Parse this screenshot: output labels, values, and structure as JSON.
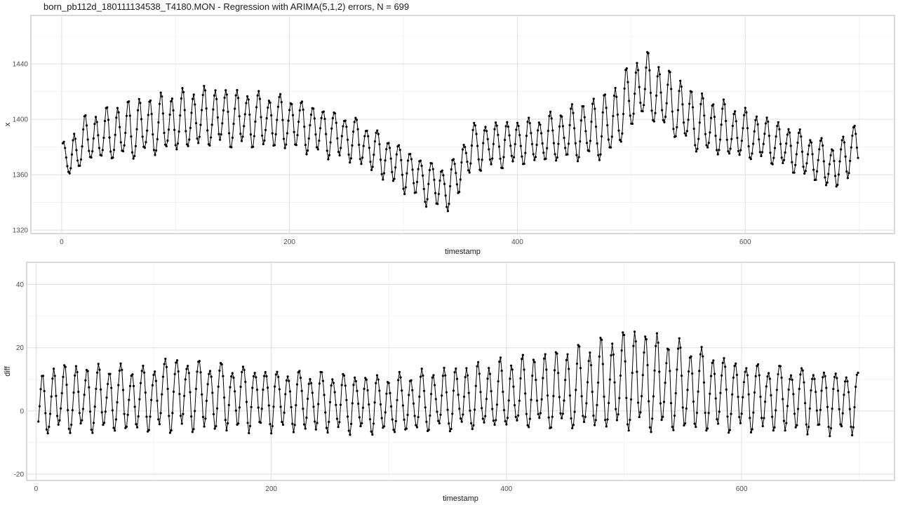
{
  "title": "born_pb112d_180111134538_T4180.MON - Regression with ARIMA(5,1,2) errors, N = 699",
  "colors": {
    "line": "#000000",
    "grid": "#dedede",
    "panel_border": "#b3b3b3",
    "background": "#ffffff"
  },
  "chart_data": [
    {
      "type": "line",
      "name": "top",
      "xlabel": "timestamp",
      "ylabel": "x",
      "xlim": [
        -27,
        731
      ],
      "ylim": [
        1317.5,
        1475
      ],
      "xticks": [
        0,
        200,
        400,
        600
      ],
      "yticks": [
        1320,
        1360,
        1400,
        1440
      ],
      "grid": true,
      "markers": true,
      "series": {
        "x_start": 1,
        "x_end": 699,
        "points": 699,
        "period": 9.5,
        "envelope": [
          [
            1,
            1372,
            20
          ],
          [
            8,
            1372,
            30
          ],
          [
            20,
            1385,
            30
          ],
          [
            60,
            1392,
            40
          ],
          [
            130,
            1402,
            40
          ],
          [
            200,
            1398,
            35
          ],
          [
            260,
            1385,
            30
          ],
          [
            320,
            1355,
            30
          ],
          [
            340,
            1350,
            30
          ],
          [
            360,
            1380,
            32
          ],
          [
            420,
            1385,
            30
          ],
          [
            480,
            1395,
            45
          ],
          [
            510,
            1425,
            45
          ],
          [
            560,
            1396,
            40
          ],
          [
            620,
            1385,
            30
          ],
          [
            680,
            1365,
            30
          ],
          [
            699,
            1385,
            32
          ]
        ]
      }
    },
    {
      "type": "line",
      "name": "bottom",
      "xlabel": "timestamp",
      "ylabel": "diff",
      "xlim": [
        -8,
        730
      ],
      "ylim": [
        -22,
        47
      ],
      "xticks": [
        0,
        200,
        400,
        600
      ],
      "yticks": [
        -20,
        0,
        20,
        40
      ],
      "grid": true,
      "markers": true,
      "series": {
        "x_start": 2,
        "x_end": 699,
        "points": 698,
        "period": 9.5,
        "envelope": [
          [
            2,
            0,
            17
          ],
          [
            15,
            4,
            20
          ],
          [
            100,
            4,
            19
          ],
          [
            110,
            6,
            22
          ],
          [
            200,
            4,
            18
          ],
          [
            300,
            2,
            17
          ],
          [
            400,
            5,
            20
          ],
          [
            470,
            7,
            25
          ],
          [
            510,
            10,
            30
          ],
          [
            560,
            7,
            25
          ],
          [
            600,
            5,
            20
          ],
          [
            699,
            3,
            18
          ]
        ]
      }
    }
  ]
}
